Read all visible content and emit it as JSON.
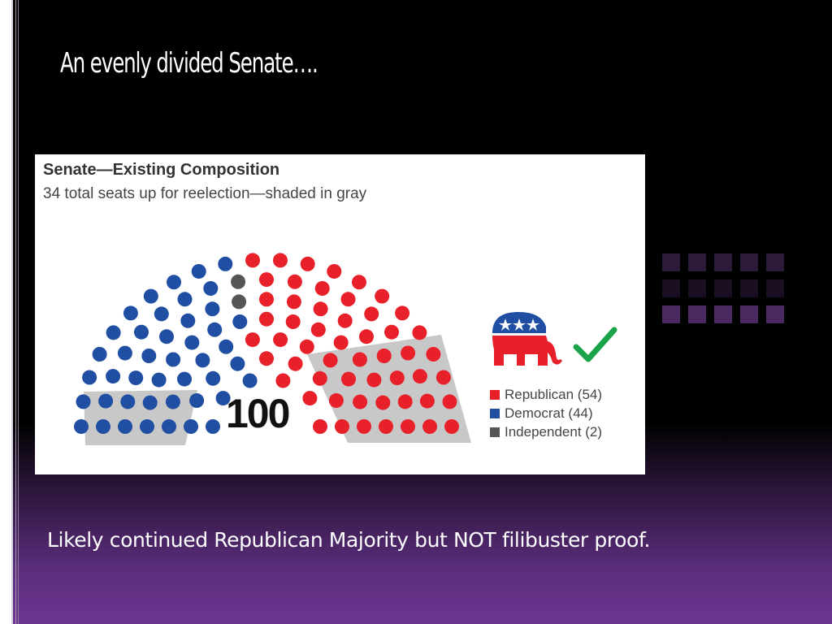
{
  "slide": {
    "title": "An evenly divided Senate….",
    "caption": "Likely continued Republican Majority but NOT filibuster proof."
  },
  "figure": {
    "title": "Senate—Existing Composition",
    "subtitle": "34 total seats up for reelection—shaded in gray",
    "total": "100",
    "legend": [
      {
        "label": "Republican (54)",
        "color": "#e8202a"
      },
      {
        "label": "Democrat (44)",
        "color": "#1f4ea3"
      },
      {
        "label": "Independent (2)",
        "color": "#555555"
      }
    ],
    "icons": [
      "republican-elephant-icon",
      "green-checkmark-icon"
    ]
  },
  "colors": {
    "republican": "#e8202a",
    "democrat": "#1f4ea3",
    "independent": "#555555",
    "up_for_reelection": "#c8c8c8",
    "check": "#1aa34a"
  }
}
